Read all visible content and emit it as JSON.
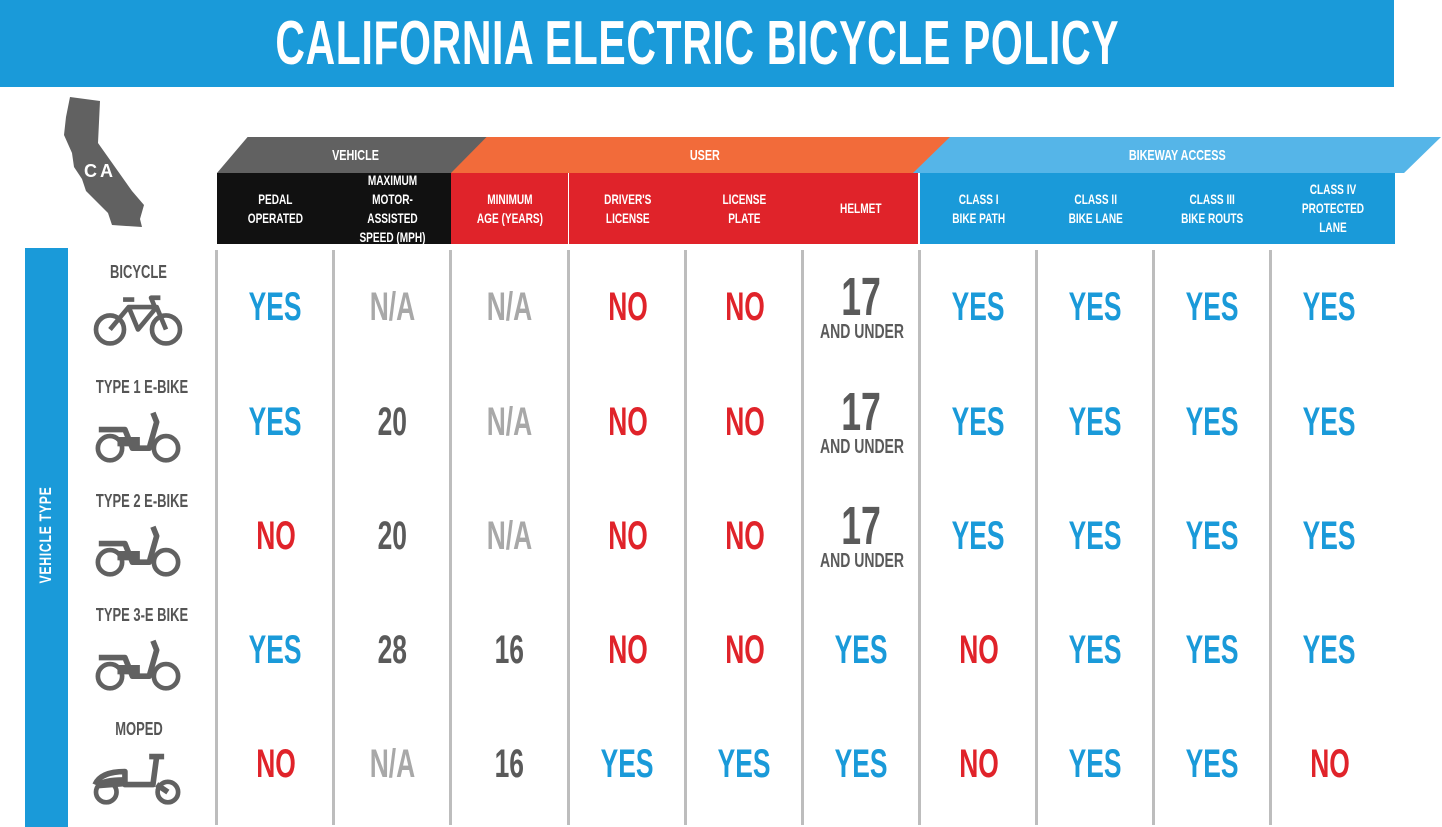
{
  "title": "CALIFORNIA ELECTRIC BICYCLE POLICY",
  "state_label": "CA",
  "side_label": "VEHICLE TYPE",
  "colors": {
    "blue": "#1a9ad9",
    "light_blue": "#55b5e8",
    "red": "#e0232a",
    "orange": "#f26b3a",
    "dark_gray": "#616161",
    "black": "#111111",
    "na_gray": "#a8a8a8"
  },
  "groups": [
    {
      "label": "VEHICLE",
      "color": "#616161"
    },
    {
      "label": "USER",
      "color": "#f26b3a"
    },
    {
      "label": "BIKEWAY ACCESS",
      "color": "#55b5e8"
    }
  ],
  "columns": [
    {
      "label": "PEDAL\nOPERATED",
      "group": "VEHICLE"
    },
    {
      "label": "MAXIMUM\nMOTOR-ASSISTED\nSPEED (MPH)",
      "group": "VEHICLE"
    },
    {
      "label": "MINIMUM\nAGE (YEARS)",
      "group": "USER"
    },
    {
      "label": "DRIVER'S\nLICENSE",
      "group": "USER"
    },
    {
      "label": "LICENSE\nPLATE",
      "group": "USER"
    },
    {
      "label": "HELMET",
      "group": "USER"
    },
    {
      "label": "CLASS I\nBIKE PATH",
      "group": "BIKEWAY ACCESS"
    },
    {
      "label": "CLASS II\nBIKE LANE",
      "group": "BIKEWAY ACCESS"
    },
    {
      "label": "CLASS III\nBIKE ROUTS",
      "group": "BIKEWAY ACCESS"
    },
    {
      "label": "CLASS IV\nPROTECTED LANE",
      "group": "BIKEWAY ACCESS"
    }
  ],
  "rows": [
    {
      "label": "BICYCLE",
      "icon": "bicycle-icon",
      "cells": [
        {
          "v": "YES",
          "t": "yes"
        },
        {
          "v": "N/A",
          "t": "na"
        },
        {
          "v": "N/A",
          "t": "na"
        },
        {
          "v": "NO",
          "t": "no"
        },
        {
          "v": "NO",
          "t": "no"
        },
        {
          "v": "17",
          "sub": "AND UNDER",
          "t": "num"
        },
        {
          "v": "YES",
          "t": "yes"
        },
        {
          "v": "YES",
          "t": "yes"
        },
        {
          "v": "YES",
          "t": "yes"
        },
        {
          "v": "YES",
          "t": "yes"
        }
      ]
    },
    {
      "label": "TYPE 1 E-BIKE",
      "icon": "ebike-icon",
      "cells": [
        {
          "v": "YES",
          "t": "yes"
        },
        {
          "v": "20",
          "t": "num"
        },
        {
          "v": "N/A",
          "t": "na"
        },
        {
          "v": "NO",
          "t": "no"
        },
        {
          "v": "NO",
          "t": "no"
        },
        {
          "v": "17",
          "sub": "AND UNDER",
          "t": "num"
        },
        {
          "v": "YES",
          "t": "yes"
        },
        {
          "v": "YES",
          "t": "yes"
        },
        {
          "v": "YES",
          "t": "yes"
        },
        {
          "v": "YES",
          "t": "yes"
        }
      ]
    },
    {
      "label": "TYPE 2 E-BIKE",
      "icon": "ebike-icon",
      "cells": [
        {
          "v": "NO",
          "t": "no"
        },
        {
          "v": "20",
          "t": "num"
        },
        {
          "v": "N/A",
          "t": "na"
        },
        {
          "v": "NO",
          "t": "no"
        },
        {
          "v": "NO",
          "t": "no"
        },
        {
          "v": "17",
          "sub": "AND UNDER",
          "t": "num"
        },
        {
          "v": "YES",
          "t": "yes"
        },
        {
          "v": "YES",
          "t": "yes"
        },
        {
          "v": "YES",
          "t": "yes"
        },
        {
          "v": "YES",
          "t": "yes"
        }
      ]
    },
    {
      "label": "TYPE 3-E BIKE",
      "icon": "ebike-icon",
      "cells": [
        {
          "v": "YES",
          "t": "yes"
        },
        {
          "v": "28",
          "t": "num"
        },
        {
          "v": "16",
          "t": "num"
        },
        {
          "v": "NO",
          "t": "no"
        },
        {
          "v": "NO",
          "t": "no"
        },
        {
          "v": "YES",
          "t": "yes"
        },
        {
          "v": "NO",
          "t": "no"
        },
        {
          "v": "YES",
          "t": "yes"
        },
        {
          "v": "YES",
          "t": "yes"
        },
        {
          "v": "YES",
          "t": "yes"
        }
      ]
    },
    {
      "label": "MOPED",
      "icon": "moped-icon",
      "cells": [
        {
          "v": "NO",
          "t": "no"
        },
        {
          "v": "N/A",
          "t": "na"
        },
        {
          "v": "16",
          "t": "num"
        },
        {
          "v": "YES",
          "t": "yes"
        },
        {
          "v": "YES",
          "t": "yes"
        },
        {
          "v": "YES",
          "t": "yes"
        },
        {
          "v": "NO",
          "t": "no"
        },
        {
          "v": "YES",
          "t": "yes"
        },
        {
          "v": "YES",
          "t": "yes"
        },
        {
          "v": "NO",
          "t": "no"
        }
      ]
    }
  ]
}
